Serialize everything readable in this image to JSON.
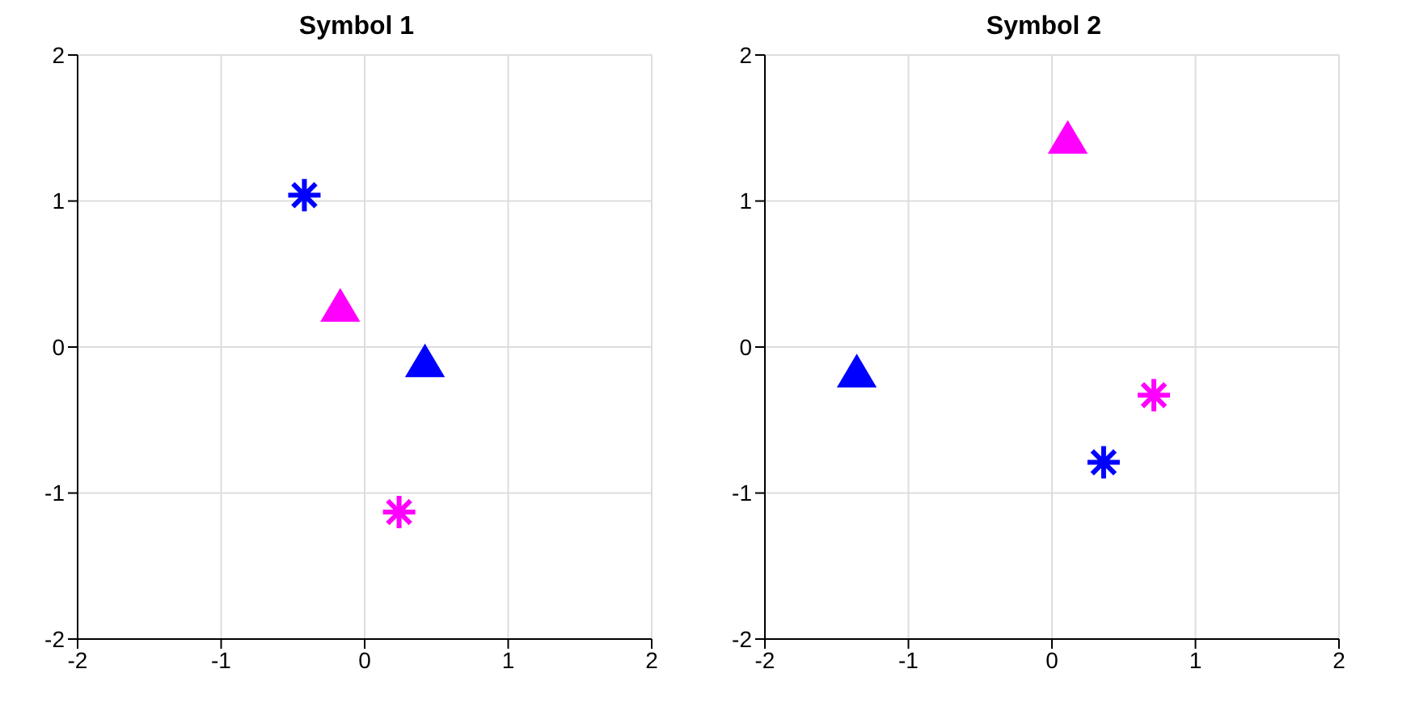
{
  "chart_data": [
    {
      "type": "scatter",
      "title": "Symbol 1",
      "xlim": [
        -2,
        2
      ],
      "ylim": [
        -2,
        2
      ],
      "xticks": [
        -2,
        -1,
        0,
        1,
        2
      ],
      "yticks": [
        -2,
        -1,
        0,
        1,
        2
      ],
      "grid": true,
      "series": [
        {
          "color": "#0000ff",
          "marker": "cross",
          "x": [
            -0.42
          ],
          "values": [
            1.04
          ]
        },
        {
          "color": "#ff00ff",
          "marker": "triangle",
          "x": [
            -0.17
          ],
          "values": [
            0.26
          ]
        },
        {
          "color": "#0000ff",
          "marker": "triangle",
          "x": [
            0.42
          ],
          "values": [
            -0.12
          ]
        },
        {
          "color": "#ff00ff",
          "marker": "cross",
          "x": [
            0.24
          ],
          "values": [
            -1.13
          ]
        }
      ]
    },
    {
      "type": "scatter",
      "title": "Symbol 2",
      "xlim": [
        -2,
        2
      ],
      "ylim": [
        -2,
        2
      ],
      "xticks": [
        -2,
        -1,
        0,
        1,
        2
      ],
      "yticks": [
        -2,
        -1,
        0,
        1,
        2
      ],
      "grid": true,
      "series": [
        {
          "color": "#ff00ff",
          "marker": "triangle",
          "x": [
            0.11
          ],
          "values": [
            1.41
          ]
        },
        {
          "color": "#0000ff",
          "marker": "triangle",
          "x": [
            -1.36
          ],
          "values": [
            -0.19
          ]
        },
        {
          "color": "#ff00ff",
          "marker": "cross",
          "x": [
            0.71
          ],
          "values": [
            -0.33
          ]
        },
        {
          "color": "#0000ff",
          "marker": "cross",
          "x": [
            0.36
          ],
          "values": [
            -0.79
          ]
        }
      ]
    }
  ]
}
